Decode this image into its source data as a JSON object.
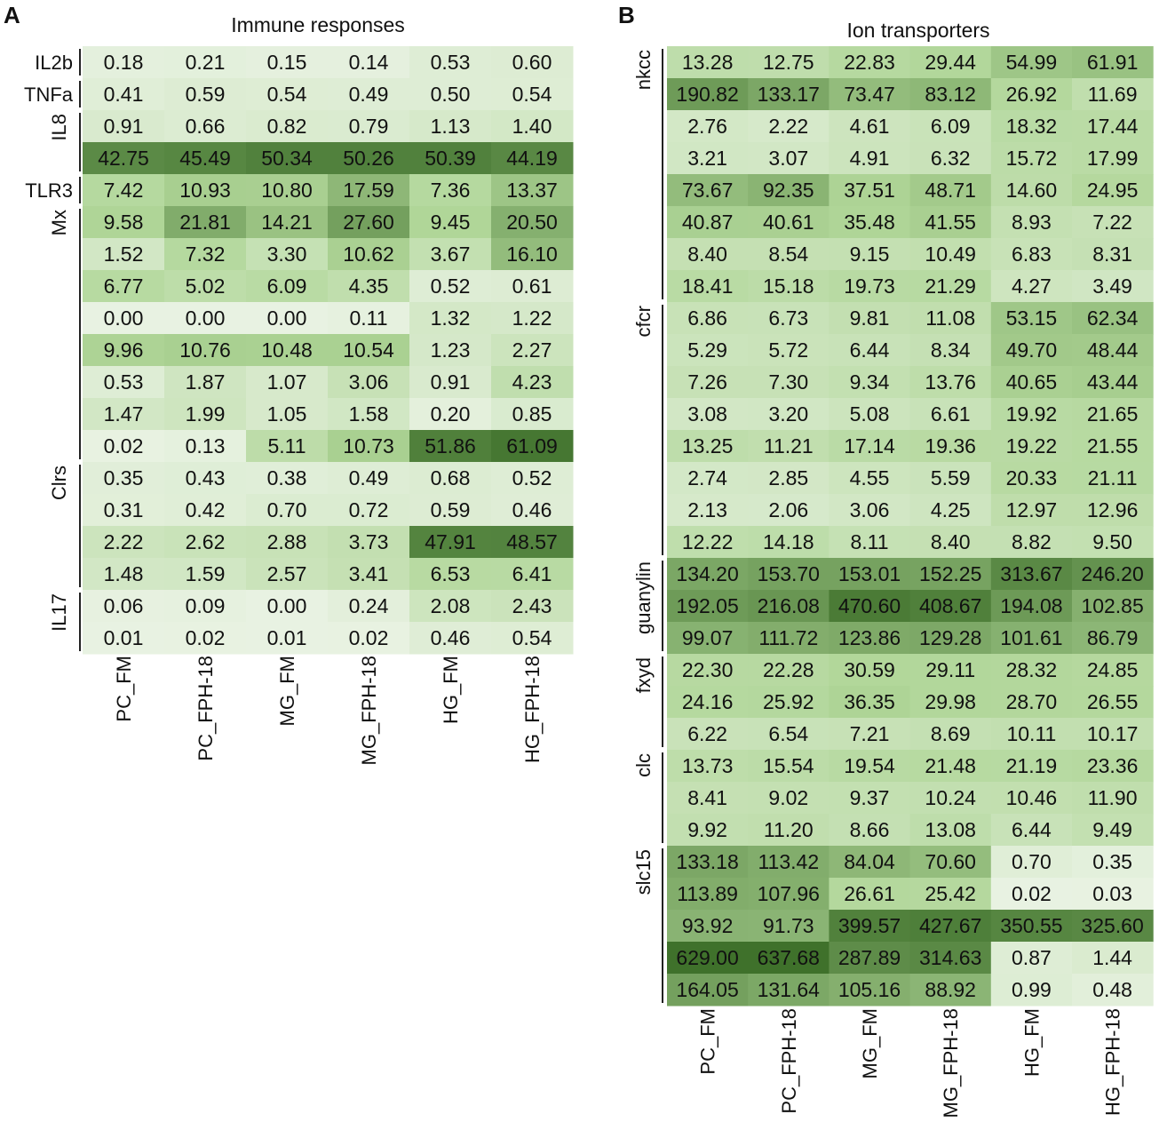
{
  "chart_data": [
    {
      "type": "heatmap",
      "panel": "A",
      "title": "Immune responses",
      "columns": [
        "PC_FM",
        "PC_FPH-18",
        "MG_FM",
        "MG_FPH-18",
        "HG_FM",
        "HG_FPH-18"
      ],
      "groups": [
        {
          "label": "IL2b",
          "start": 0,
          "count": 1
        },
        {
          "label": "TNFa",
          "start": 1,
          "count": 1
        },
        {
          "label": "IL8",
          "start": 2,
          "count": 2
        },
        {
          "label": "TLR3",
          "start": 4,
          "count": 1
        },
        {
          "label": "Mx",
          "start": 5,
          "count": 8
        },
        {
          "label": "Clrs",
          "start": 13,
          "count": 4
        },
        {
          "label": "IL17",
          "start": 17,
          "count": 2
        }
      ],
      "rows": [
        [
          "0.18",
          "0.21",
          "0.15",
          "0.14",
          "0.53",
          "0.60"
        ],
        [
          "0.41",
          "0.59",
          "0.54",
          "0.49",
          "0.50",
          "0.54"
        ],
        [
          "0.91",
          "0.66",
          "0.82",
          "0.79",
          "1.13",
          "1.40"
        ],
        [
          "42.75",
          "45.49",
          "50.34",
          "50.26",
          "50.39",
          "44.19"
        ],
        [
          "7.42",
          "10.93",
          "10.80",
          "17.59",
          "7.36",
          "13.37"
        ],
        [
          "9.58",
          "21.81",
          "14.21",
          "27.60",
          "9.45",
          "20.50"
        ],
        [
          "1.52",
          "7.32",
          "3.30",
          "10.62",
          "3.67",
          "16.10"
        ],
        [
          "6.77",
          "5.02",
          "6.09",
          "4.35",
          "0.52",
          "0.61"
        ],
        [
          "0.00",
          "0.00",
          "0.00",
          "0.11",
          "1.32",
          "1.22"
        ],
        [
          "9.96",
          "10.76",
          "10.48",
          "10.54",
          "1.23",
          "2.27"
        ],
        [
          "0.53",
          "1.87",
          "1.07",
          "3.06",
          "0.91",
          "4.23"
        ],
        [
          "1.47",
          "1.99",
          "1.05",
          "1.58",
          "0.20",
          "0.85"
        ],
        [
          "0.02",
          "0.13",
          "5.11",
          "10.73",
          "51.86",
          "61.09"
        ],
        [
          "0.35",
          "0.43",
          "0.38",
          "0.49",
          "0.68",
          "0.52"
        ],
        [
          "0.31",
          "0.42",
          "0.70",
          "0.72",
          "0.59",
          "0.46"
        ],
        [
          "2.22",
          "2.62",
          "2.88",
          "3.73",
          "47.91",
          "48.57"
        ],
        [
          "1.48",
          "1.59",
          "2.57",
          "3.41",
          "6.53",
          "6.41"
        ],
        [
          "0.06",
          "0.09",
          "0.00",
          "0.24",
          "2.08",
          "2.43"
        ],
        [
          "0.01",
          "0.02",
          "0.01",
          "0.02",
          "0.46",
          "0.54"
        ]
      ]
    },
    {
      "type": "heatmap",
      "panel": "B",
      "title": "Ion transporters",
      "columns": [
        "PC_FM",
        "PC_FPH-18",
        "MG_FM",
        "MG_FPH-18",
        "HG_FM",
        "HG_FPH-18"
      ],
      "groups": [
        {
          "label": "nkcc",
          "start": 0,
          "count": 8
        },
        {
          "label": "cfcr",
          "start": 8,
          "count": 8
        },
        {
          "label": "guanylin",
          "start": 16,
          "count": 3
        },
        {
          "label": "fxyd",
          "start": 19,
          "count": 3
        },
        {
          "label": "clc",
          "start": 22,
          "count": 3
        },
        {
          "label": "slc15",
          "start": 25,
          "count": 5
        }
      ],
      "rows": [
        [
          "13.28",
          "12.75",
          "22.83",
          "29.44",
          "54.99",
          "61.91"
        ],
        [
          "190.82",
          "133.17",
          "73.47",
          "83.12",
          "26.92",
          "11.69"
        ],
        [
          "2.76",
          "2.22",
          "4.61",
          "6.09",
          "18.32",
          "17.44"
        ],
        [
          "3.21",
          "3.07",
          "4.91",
          "6.32",
          "15.72",
          "17.99"
        ],
        [
          "73.67",
          "92.35",
          "37.51",
          "48.71",
          "14.60",
          "24.95"
        ],
        [
          "40.87",
          "40.61",
          "35.48",
          "41.55",
          "8.93",
          "7.22"
        ],
        [
          "8.40",
          "8.54",
          "9.15",
          "10.49",
          "6.83",
          "8.31"
        ],
        [
          "18.41",
          "15.18",
          "19.73",
          "21.29",
          "4.27",
          "3.49"
        ],
        [
          "6.86",
          "6.73",
          "9.81",
          "11.08",
          "53.15",
          "62.34"
        ],
        [
          "5.29",
          "5.72",
          "6.44",
          "8.34",
          "49.70",
          "48.44"
        ],
        [
          "7.26",
          "7.30",
          "9.34",
          "13.76",
          "40.65",
          "43.44"
        ],
        [
          "3.08",
          "3.20",
          "5.08",
          "6.61",
          "19.92",
          "21.65"
        ],
        [
          "13.25",
          "11.21",
          "17.14",
          "19.36",
          "19.22",
          "21.55"
        ],
        [
          "2.74",
          "2.85",
          "4.55",
          "5.59",
          "20.33",
          "21.11"
        ],
        [
          "2.13",
          "2.06",
          "3.06",
          "4.25",
          "12.97",
          "12.96"
        ],
        [
          "12.22",
          "14.18",
          "8.11",
          "8.40",
          "8.82",
          "9.50"
        ],
        [
          "134.20",
          "153.70",
          "153.01",
          "152.25",
          "313.67",
          "246.20"
        ],
        [
          "192.05",
          "216.08",
          "470.60",
          "408.67",
          "194.08",
          "102.85"
        ],
        [
          "99.07",
          "111.72",
          "123.86",
          "129.28",
          "101.61",
          "86.79"
        ],
        [
          "22.30",
          "22.28",
          "30.59",
          "29.11",
          "28.32",
          "24.85"
        ],
        [
          "24.16",
          "25.92",
          "36.35",
          "29.98",
          "28.70",
          "26.55"
        ],
        [
          "6.22",
          "6.54",
          "7.21",
          "8.69",
          "10.11",
          "10.17"
        ],
        [
          "13.73",
          "15.54",
          "19.54",
          "21.48",
          "21.19",
          "23.36"
        ],
        [
          "8.41",
          "9.02",
          "9.37",
          "10.24",
          "10.46",
          "11.90"
        ],
        [
          "9.92",
          "11.20",
          "8.66",
          "13.08",
          "6.44",
          "9.49"
        ],
        [
          "133.18",
          "113.42",
          "84.04",
          "70.60",
          "0.70",
          "0.35"
        ],
        [
          "113.89",
          "107.96",
          "26.61",
          "25.42",
          "0.02",
          "0.03"
        ],
        [
          "93.92",
          "91.73",
          "399.57",
          "427.67",
          "350.55",
          "325.60"
        ],
        [
          "629.00",
          "637.68",
          "287.89",
          "314.63",
          "0.87",
          "1.44"
        ],
        [
          "164.05",
          "131.64",
          "105.16",
          "88.92",
          "0.99",
          "0.48"
        ]
      ]
    }
  ]
}
